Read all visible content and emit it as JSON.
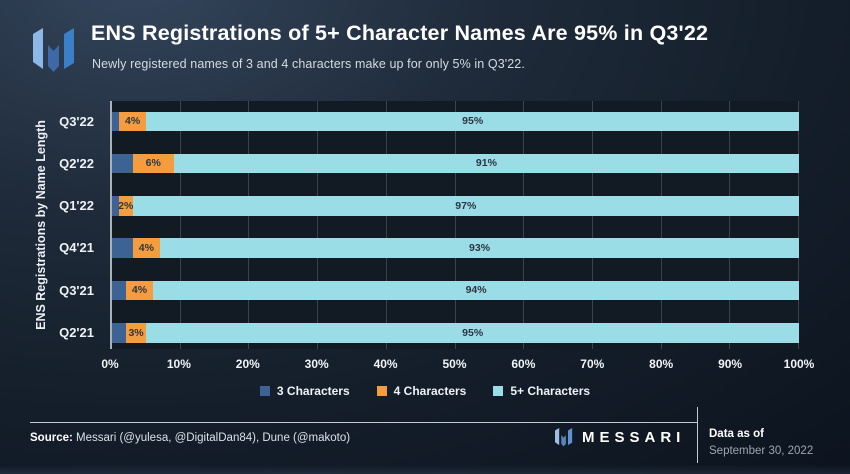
{
  "header": {
    "title": "ENS Registrations of 5+ Character Names Are 95% in Q3'22",
    "subtitle": "Newly registered names of 3 and 4 characters make up for only 5% in Q3'22."
  },
  "chart_data": {
    "type": "bar",
    "orientation": "horizontal",
    "stacked": true,
    "title": "ENS Registrations of 5+ Character Names Are 95% in Q3'22",
    "ylabel": "ENS Registrations by Name Length",
    "xlabel": "",
    "xlim": [
      0,
      100
    ],
    "grid": true,
    "legend_position": "bottom",
    "categories": [
      "Q3'22",
      "Q2'22",
      "Q1'22",
      "Q4'21",
      "Q3'21",
      "Q2'21"
    ],
    "series": [
      {
        "name": "3 Characters",
        "color": "#3d6395",
        "values": [
          1,
          3,
          1,
          3,
          2,
          2
        ],
        "show_labels": false
      },
      {
        "name": "4 Characters",
        "color": "#f59d3e",
        "values": [
          4,
          6,
          2,
          4,
          4,
          3
        ],
        "show_labels": true
      },
      {
        "name": "5+ Characters",
        "color": "#9adde7",
        "values": [
          95,
          91,
          97,
          93,
          94,
          95
        ],
        "show_labels": true
      }
    ],
    "x_ticks": [
      "0%",
      "10%",
      "20%",
      "30%",
      "40%",
      "50%",
      "60%",
      "70%",
      "80%",
      "90%",
      "100%"
    ]
  },
  "footer": {
    "source_label": "Source:",
    "source_text": " Messari (@yulesa, @DigitalDan84), Dune (@makoto)",
    "brand": "MESSARI",
    "data_as_of_label": "Data as of",
    "data_as_of_value": "September 30, 2022"
  },
  "colors": {
    "accent_blue": "#3d6395",
    "accent_orange": "#f59d3e",
    "accent_cyan": "#9adde7",
    "background_dark": "#0d1520",
    "axis_line": "#a9b1ba",
    "gridline": "#39434e"
  }
}
